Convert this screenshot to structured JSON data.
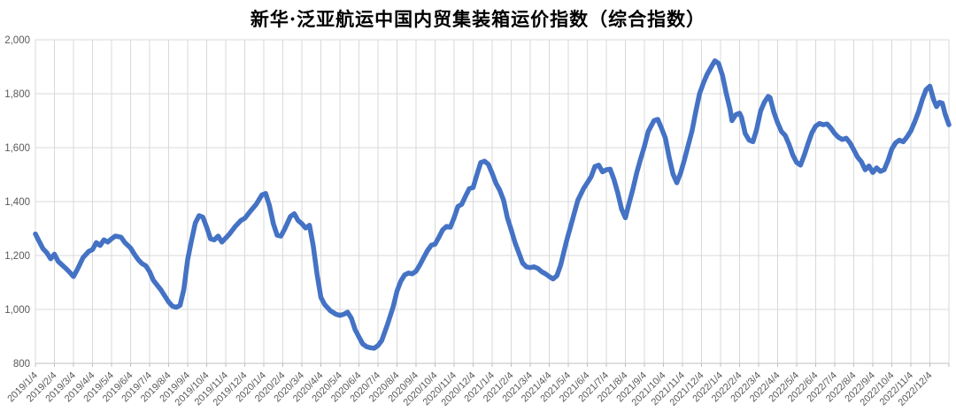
{
  "title": "新华·泛亚航运中国内贸集装箱运价指数（综合指数）",
  "colors": {
    "line": "#4472C4",
    "grid": "#D9D9D9",
    "tick": "#BFBFBF",
    "axis_text": "#595959",
    "title_text": "#000000",
    "background": "#FFFFFF"
  },
  "chart_data": {
    "type": "line",
    "title": "新华·泛亚航运中国内贸集装箱运价指数（综合指数）",
    "xlabel": "",
    "ylabel": "",
    "ylim": [
      800,
      2000
    ],
    "y_ticks": [
      800,
      1000,
      1200,
      1400,
      1600,
      1800,
      2000
    ],
    "y_tick_labels": [
      "800",
      "1,000",
      "1,200",
      "1,400",
      "1,600",
      "1,800",
      "2,000"
    ],
    "grid": true,
    "legend_position": "none",
    "x_labels": [
      "2019/1/4",
      "2019/2/4",
      "2019/3/4",
      "2019/4/4",
      "2019/5/4",
      "2019/6/4",
      "2019/7/4",
      "2019/8/4",
      "2019/9/4",
      "2019/10/4",
      "2019/11/4",
      "2019/12/4",
      "2020/1/4",
      "2020/2/4",
      "2020/3/4",
      "2020/4/4",
      "2020/5/4",
      "2020/6/4",
      "2020/7/4",
      "2020/8/4",
      "2020/9/4",
      "2020/10/4",
      "2020/11/4",
      "2020/12/4",
      "2021/1/4",
      "2021/2/4",
      "2021/3/4",
      "2021/4/4",
      "2021/5/4",
      "2021/6/4",
      "2021/7/4",
      "2021/8/4",
      "2021/9/4",
      "2021/10/4",
      "2021/11/4",
      "2021/12/4",
      "2022/1/4",
      "2022/2/4",
      "2022/3/4",
      "2022/4/4",
      "2022/5/4",
      "2022/6/4",
      "2022/7/4",
      "2022/8/4",
      "2022/9/4",
      "2022/10/4",
      "2022/11/4",
      "2022/12/4"
    ],
    "series": [
      {
        "name": "综合指数",
        "points": [
          [
            0,
            1280
          ],
          [
            0.2,
            1252
          ],
          [
            0.4,
            1225
          ],
          [
            0.6,
            1210
          ],
          [
            0.8,
            1188
          ],
          [
            1,
            1205
          ],
          [
            1.2,
            1178
          ],
          [
            1.4,
            1165
          ],
          [
            1.6,
            1152
          ],
          [
            1.8,
            1138
          ],
          [
            2,
            1122
          ],
          [
            2.2,
            1148
          ],
          [
            2.5,
            1192
          ],
          [
            2.8,
            1215
          ],
          [
            3,
            1222
          ],
          [
            3.2,
            1248
          ],
          [
            3.4,
            1237
          ],
          [
            3.6,
            1258
          ],
          [
            3.8,
            1250
          ],
          [
            4,
            1262
          ],
          [
            4.2,
            1272
          ],
          [
            4.5,
            1268
          ],
          [
            4.7,
            1248
          ],
          [
            5,
            1228
          ],
          [
            5.2,
            1205
          ],
          [
            5.4,
            1185
          ],
          [
            5.6,
            1170
          ],
          [
            5.8,
            1162
          ],
          [
            6,
            1140
          ],
          [
            6.2,
            1108
          ],
          [
            6.4,
            1090
          ],
          [
            6.6,
            1072
          ],
          [
            6.8,
            1050
          ],
          [
            7,
            1028
          ],
          [
            7.2,
            1012
          ],
          [
            7.4,
            1008
          ],
          [
            7.6,
            1015
          ],
          [
            7.8,
            1075
          ],
          [
            8,
            1185
          ],
          [
            8.2,
            1255
          ],
          [
            8.4,
            1320
          ],
          [
            8.6,
            1348
          ],
          [
            8.8,
            1342
          ],
          [
            9,
            1305
          ],
          [
            9.2,
            1262
          ],
          [
            9.4,
            1258
          ],
          [
            9.6,
            1272
          ],
          [
            9.8,
            1250
          ],
          [
            10,
            1265
          ],
          [
            10.2,
            1280
          ],
          [
            10.5,
            1308
          ],
          [
            10.8,
            1330
          ],
          [
            11,
            1338
          ],
          [
            11.3,
            1365
          ],
          [
            11.6,
            1390
          ],
          [
            11.9,
            1425
          ],
          [
            12.1,
            1430
          ],
          [
            12.3,
            1385
          ],
          [
            12.5,
            1318
          ],
          [
            12.7,
            1275
          ],
          [
            12.9,
            1272
          ],
          [
            13.1,
            1298
          ],
          [
            13.4,
            1345
          ],
          [
            13.6,
            1355
          ],
          [
            13.8,
            1330
          ],
          [
            14,
            1318
          ],
          [
            14.2,
            1302
          ],
          [
            14.4,
            1312
          ],
          [
            14.6,
            1235
          ],
          [
            14.8,
            1130
          ],
          [
            15,
            1045
          ],
          [
            15.2,
            1018
          ],
          [
            15.5,
            995
          ],
          [
            15.8,
            982
          ],
          [
            16,
            978
          ],
          [
            16.2,
            982
          ],
          [
            16.4,
            990
          ],
          [
            16.6,
            968
          ],
          [
            16.8,
            925
          ],
          [
            17,
            898
          ],
          [
            17.2,
            872
          ],
          [
            17.4,
            862
          ],
          [
            17.6,
            858
          ],
          [
            17.8,
            856
          ],
          [
            18,
            866
          ],
          [
            18.2,
            885
          ],
          [
            18.5,
            945
          ],
          [
            18.8,
            1010
          ],
          [
            19,
            1068
          ],
          [
            19.2,
            1105
          ],
          [
            19.4,
            1128
          ],
          [
            19.6,
            1135
          ],
          [
            19.8,
            1132
          ],
          [
            20,
            1142
          ],
          [
            20.2,
            1165
          ],
          [
            20.4,
            1192
          ],
          [
            20.6,
            1218
          ],
          [
            20.8,
            1238
          ],
          [
            21,
            1242
          ],
          [
            21.2,
            1268
          ],
          [
            21.4,
            1295
          ],
          [
            21.6,
            1308
          ],
          [
            21.8,
            1305
          ],
          [
            22,
            1340
          ],
          [
            22.2,
            1382
          ],
          [
            22.4,
            1390
          ],
          [
            22.6,
            1420
          ],
          [
            22.8,
            1448
          ],
          [
            23,
            1452
          ],
          [
            23.2,
            1500
          ],
          [
            23.4,
            1545
          ],
          [
            23.6,
            1550
          ],
          [
            23.8,
            1538
          ],
          [
            24,
            1505
          ],
          [
            24.2,
            1468
          ],
          [
            24.4,
            1442
          ],
          [
            24.6,
            1405
          ],
          [
            24.8,
            1340
          ],
          [
            25,
            1295
          ],
          [
            25.2,
            1248
          ],
          [
            25.4,
            1210
          ],
          [
            25.6,
            1172
          ],
          [
            25.8,
            1158
          ],
          [
            26,
            1155
          ],
          [
            26.2,
            1158
          ],
          [
            26.4,
            1152
          ],
          [
            26.6,
            1140
          ],
          [
            26.8,
            1132
          ],
          [
            27,
            1122
          ],
          [
            27.2,
            1113
          ],
          [
            27.4,
            1125
          ],
          [
            27.6,
            1165
          ],
          [
            27.9,
            1252
          ],
          [
            28.2,
            1328
          ],
          [
            28.5,
            1405
          ],
          [
            28.8,
            1448
          ],
          [
            29,
            1470
          ],
          [
            29.2,
            1492
          ],
          [
            29.4,
            1530
          ],
          [
            29.6,
            1535
          ],
          [
            29.8,
            1510
          ],
          [
            30,
            1518
          ],
          [
            30.2,
            1520
          ],
          [
            30.4,
            1482
          ],
          [
            30.6,
            1432
          ],
          [
            30.8,
            1372
          ],
          [
            31,
            1340
          ],
          [
            31.2,
            1395
          ],
          [
            31.4,
            1448
          ],
          [
            31.6,
            1508
          ],
          [
            31.8,
            1558
          ],
          [
            32,
            1605
          ],
          [
            32.2,
            1660
          ],
          [
            32.5,
            1700
          ],
          [
            32.7,
            1705
          ],
          [
            32.9,
            1672
          ],
          [
            33.1,
            1635
          ],
          [
            33.3,
            1565
          ],
          [
            33.5,
            1502
          ],
          [
            33.7,
            1470
          ],
          [
            33.9,
            1505
          ],
          [
            34.1,
            1555
          ],
          [
            34.3,
            1608
          ],
          [
            34.5,
            1662
          ],
          [
            34.7,
            1735
          ],
          [
            34.9,
            1800
          ],
          [
            35.1,
            1840
          ],
          [
            35.3,
            1872
          ],
          [
            35.5,
            1898
          ],
          [
            35.7,
            1922
          ],
          [
            35.9,
            1912
          ],
          [
            36.1,
            1868
          ],
          [
            36.3,
            1802
          ],
          [
            36.5,
            1742
          ],
          [
            36.6,
            1700
          ],
          [
            36.8,
            1722
          ],
          [
            37,
            1728
          ],
          [
            37.1,
            1712
          ],
          [
            37.3,
            1652
          ],
          [
            37.5,
            1628
          ],
          [
            37.7,
            1622
          ],
          [
            37.9,
            1668
          ],
          [
            38.1,
            1735
          ],
          [
            38.3,
            1768
          ],
          [
            38.5,
            1790
          ],
          [
            38.6,
            1786
          ],
          [
            38.8,
            1732
          ],
          [
            39,
            1692
          ],
          [
            39.2,
            1660
          ],
          [
            39.4,
            1645
          ],
          [
            39.6,
            1612
          ],
          [
            39.8,
            1572
          ],
          [
            40,
            1545
          ],
          [
            40.2,
            1535
          ],
          [
            40.4,
            1572
          ],
          [
            40.6,
            1615
          ],
          [
            40.8,
            1655
          ],
          [
            41,
            1680
          ],
          [
            41.2,
            1690
          ],
          [
            41.4,
            1685
          ],
          [
            41.6,
            1688
          ],
          [
            41.8,
            1672
          ],
          [
            42,
            1652
          ],
          [
            42.2,
            1638
          ],
          [
            42.4,
            1630
          ],
          [
            42.6,
            1635
          ],
          [
            42.8,
            1618
          ],
          [
            43,
            1592
          ],
          [
            43.2,
            1565
          ],
          [
            43.4,
            1548
          ],
          [
            43.6,
            1518
          ],
          [
            43.8,
            1532
          ],
          [
            44,
            1508
          ],
          [
            44.2,
            1525
          ],
          [
            44.4,
            1512
          ],
          [
            44.6,
            1518
          ],
          [
            44.8,
            1552
          ],
          [
            45,
            1595
          ],
          [
            45.2,
            1618
          ],
          [
            45.4,
            1628
          ],
          [
            45.6,
            1622
          ],
          [
            45.8,
            1640
          ],
          [
            46,
            1662
          ],
          [
            46.2,
            1695
          ],
          [
            46.4,
            1732
          ],
          [
            46.6,
            1778
          ],
          [
            46.8,
            1815
          ],
          [
            47,
            1828
          ],
          [
            47.2,
            1777
          ],
          [
            47.35,
            1752
          ],
          [
            47.5,
            1768
          ],
          [
            47.65,
            1765
          ],
          [
            47.8,
            1725
          ],
          [
            48,
            1685
          ]
        ]
      }
    ]
  }
}
